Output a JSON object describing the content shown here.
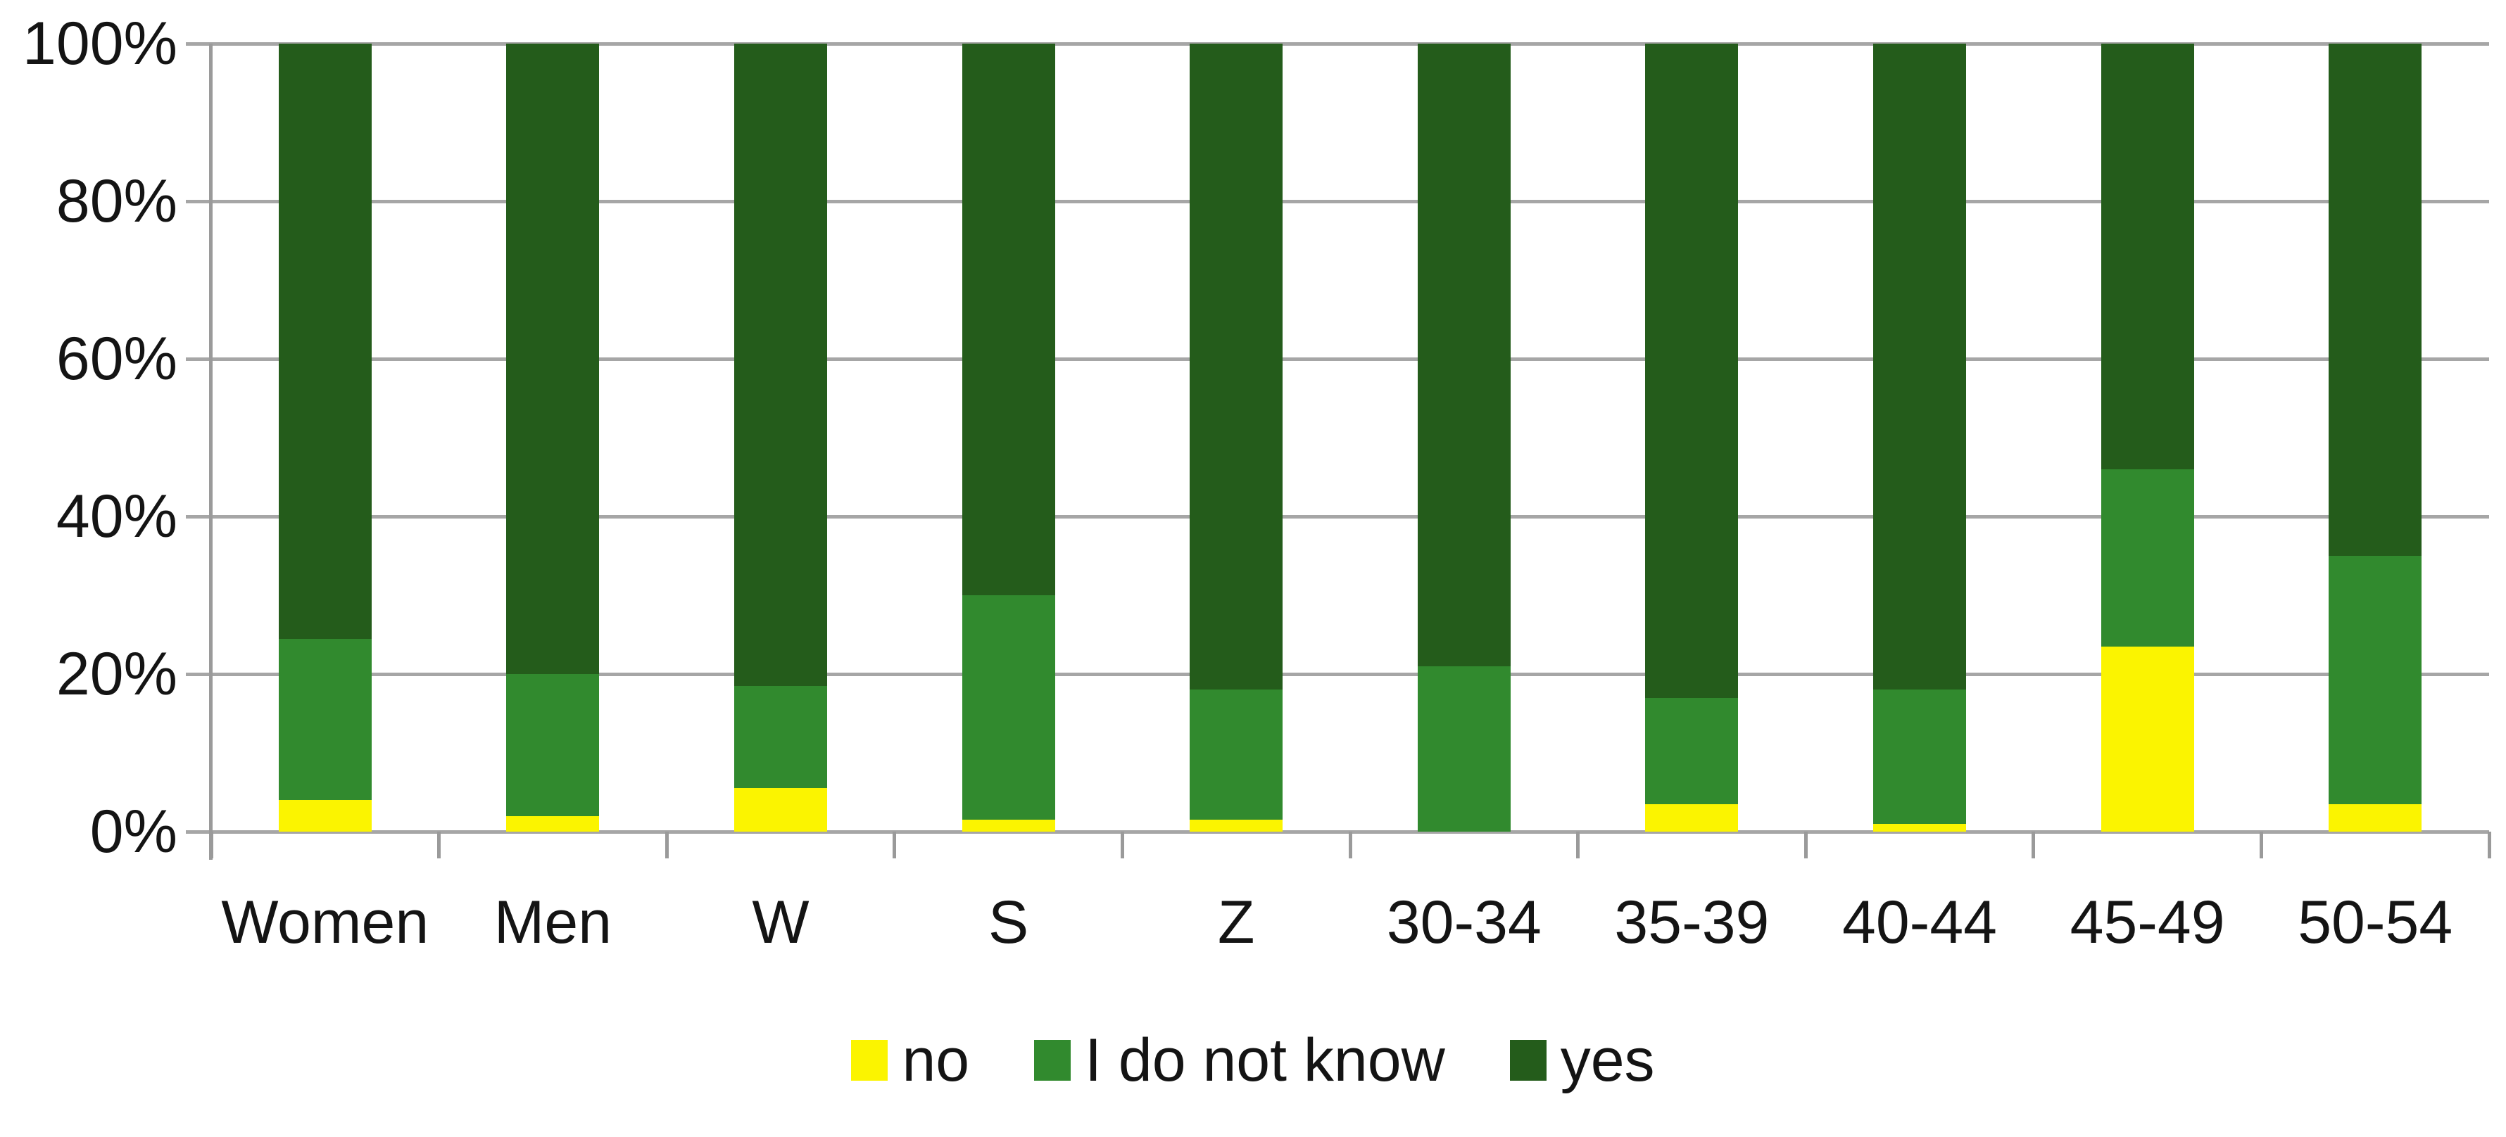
{
  "chart_data": {
    "type": "bar",
    "subtype": "stacked-100-percent",
    "title": "",
    "xlabel": "",
    "ylabel": "",
    "ylim": [
      0,
      100
    ],
    "grid": true,
    "gridline_color": "#a6a6a6",
    "axis_color": "#9a9a9a",
    "text_color": "#141414",
    "legend_position": "bottom",
    "categories": [
      "Women",
      "Men",
      "W",
      "S",
      "Z",
      "30-34",
      "35-39",
      "40-44",
      "45-49",
      "50-54"
    ],
    "series": [
      {
        "name": "no",
        "color": "#fbf400",
        "values": [
          4,
          2,
          5.5,
          1.5,
          1.5,
          0,
          3.5,
          1,
          23.5,
          3.5
        ]
      },
      {
        "name": "I do not know",
        "color": "#318a2e",
        "values": [
          20.5,
          18,
          13,
          28.5,
          16.5,
          21,
          13.5,
          17,
          22.5,
          31.5
        ]
      },
      {
        "name": "yes",
        "color": "#245c1b",
        "values": [
          75.5,
          80,
          81.5,
          70,
          82,
          79,
          83,
          82,
          54,
          65
        ]
      }
    ],
    "y_ticks": [
      {
        "label": "0%",
        "value": 0
      },
      {
        "label": "20%",
        "value": 20
      },
      {
        "label": "40%",
        "value": 40
      },
      {
        "label": "60%",
        "value": 60
      },
      {
        "label": "80%",
        "value": 80
      },
      {
        "label": "100%",
        "value": 100
      }
    ]
  }
}
